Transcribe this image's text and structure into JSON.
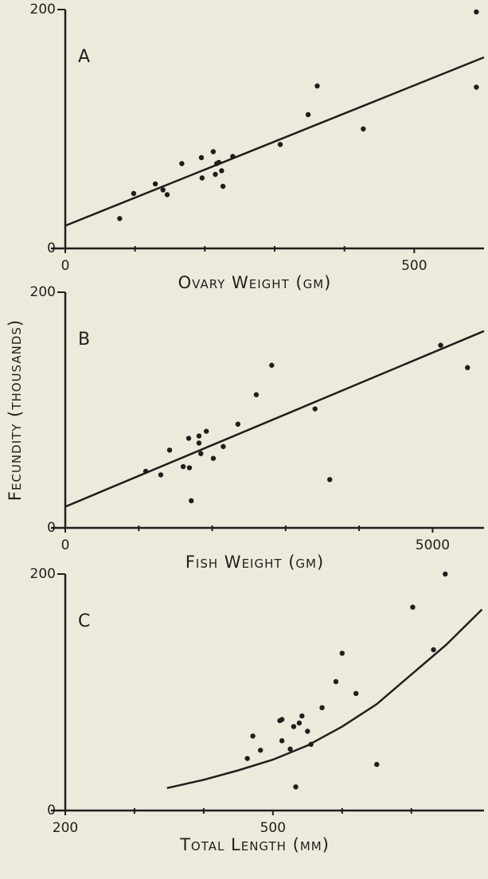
{
  "ylabel": "Fecundity (thousands)",
  "chart_data": [
    {
      "type": "scatter",
      "panel": "A",
      "xlabel": "Ovary Weight (gm)",
      "xlim": [
        0,
        600
      ],
      "ylim": [
        0,
        200
      ],
      "xticks": [
        0,
        500
      ],
      "yticks": [
        0,
        200
      ],
      "xticks_minor": [
        100,
        200,
        300,
        400
      ],
      "x": [
        78,
        98,
        129,
        140,
        146,
        167,
        195,
        196,
        212,
        217,
        220,
        224,
        215,
        226,
        240,
        308,
        348,
        361,
        427,
        589,
        589
      ],
      "y": [
        25,
        46,
        54,
        49,
        45,
        71,
        76,
        59,
        81,
        71,
        72,
        65,
        62,
        52,
        77,
        87,
        112,
        136,
        100,
        135,
        198
      ],
      "fit": {
        "x": [
          0,
          600
        ],
        "y": [
          19,
          160
        ]
      },
      "color": "#1e1e1e"
    },
    {
      "type": "scatter",
      "panel": "B",
      "xlabel": "Fish Weight (gm)",
      "xlim": [
        0,
        5700
      ],
      "ylim": [
        0,
        200
      ],
      "xticks": [
        0,
        5000
      ],
      "yticks": [
        0,
        200
      ],
      "xticks_minor": [
        1000,
        2000,
        3000,
        4000
      ],
      "x": [
        1095,
        1300,
        1420,
        1605,
        1690,
        1680,
        1820,
        1820,
        1845,
        1920,
        2015,
        2150,
        2350,
        1715,
        2600,
        2810,
        3400,
        3600,
        5110,
        5475
      ],
      "y": [
        48,
        45,
        66,
        52,
        51,
        76,
        78,
        72,
        63,
        82,
        59,
        69,
        88,
        23,
        113,
        138,
        101,
        41,
        155,
        136
      ],
      "fit": {
        "x": [
          0,
          5700
        ],
        "y": [
          18,
          167
        ]
      },
      "color": "#1e1e1e"
    },
    {
      "type": "scatter",
      "panel": "C",
      "xlabel": "Total Length (mm)",
      "xlim": [
        200,
        805
      ],
      "ylim": [
        0,
        200
      ],
      "xticks": [
        200,
        500
      ],
      "yticks": [
        0,
        200
      ],
      "xticks_minor": [
        300,
        400,
        600,
        700
      ],
      "x": [
        463,
        471,
        482,
        510,
        513,
        513,
        525,
        530,
        538,
        542,
        550,
        555,
        533,
        571,
        591,
        600,
        620,
        650,
        702,
        732,
        749
      ],
      "y": [
        44,
        63,
        51,
        76,
        77,
        59,
        52,
        71,
        74,
        80,
        67,
        56,
        20,
        87,
        109,
        133,
        99,
        39,
        172,
        136,
        200
      ],
      "fit": {
        "x": [
          347,
          400,
          450,
          500,
          550,
          600,
          650,
          700,
          750,
          802
        ],
        "y": [
          19,
          26,
          34,
          43,
          55,
          71,
          90,
          115,
          140,
          170
        ]
      },
      "color": "#1e1e1e"
    }
  ]
}
